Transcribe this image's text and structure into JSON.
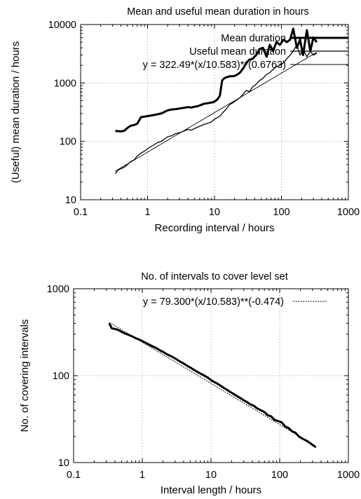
{
  "chart_data": [
    {
      "type": "line",
      "title": "Mean and useful mean duration in hours",
      "xlabel": "Recording interval / hours",
      "ylabel": "(Useful) mean duration / hours",
      "x_scale": "log",
      "y_scale": "log",
      "xlim": [
        0.1,
        1000
      ],
      "ylim": [
        10,
        10000
      ],
      "x_ticks": [
        "0.1",
        "1",
        "10",
        "100",
        "1000"
      ],
      "y_ticks": [
        "10",
        "100",
        "1000",
        "10000"
      ],
      "grid": true,
      "legend_position": "top-right",
      "series": [
        {
          "name": "Mean duration",
          "style": "thick",
          "x": [
            0.33,
            0.36,
            0.4,
            0.45,
            0.5,
            0.56,
            0.63,
            0.7,
            0.8,
            0.9,
            1.0,
            1.2,
            1.4,
            1.6,
            1.8,
            2.0,
            2.3,
            2.6,
            3.0,
            3.5,
            4.0,
            4.5,
            5.0,
            5.6,
            6.3,
            7.0,
            8.0,
            9.0,
            10.0,
            11.0,
            12.0,
            13.0,
            14.0,
            15.0,
            17.0,
            19.0,
            21.0,
            24.0,
            27.0,
            30.0,
            33.0,
            37.0,
            42.0,
            47.0,
            53.0,
            60.0,
            67.0,
            75.0,
            84.0,
            95.0,
            107.0,
            120.0,
            135.0,
            150.0,
            170.0,
            190.0,
            210.0,
            240.0,
            270.0,
            300.0,
            336.0
          ],
          "y": [
            150,
            150,
            148,
            152,
            170,
            185,
            190,
            200,
            260,
            265,
            270,
            280,
            290,
            300,
            320,
            340,
            350,
            355,
            365,
            375,
            385,
            380,
            390,
            400,
            420,
            440,
            450,
            460,
            480,
            520,
            600,
            1100,
            1200,
            1250,
            1300,
            1300,
            1350,
            1500,
            1800,
            2200,
            2500,
            2600,
            3000,
            3800,
            4000,
            2800,
            4500,
            3500,
            5000,
            4500,
            5500,
            5000,
            5500,
            8500,
            4000,
            5500,
            3000,
            8000,
            3500,
            6000,
            5000
          ]
        },
        {
          "name": "Useful mean duration",
          "style": "thin",
          "x": [
            0.33,
            0.36,
            0.4,
            0.45,
            0.5,
            0.56,
            0.63,
            0.7,
            0.8,
            0.9,
            1.0,
            1.2,
            1.4,
            1.6,
            1.8,
            2.0,
            2.3,
            2.6,
            3.0,
            3.5,
            4.0,
            4.5,
            5.0,
            5.6,
            6.3,
            7.0,
            8.0,
            9.0,
            10.0,
            11.0,
            12.0,
            13.0,
            14.0,
            15.0,
            17.0,
            19.0,
            21.0,
            24.0,
            27.0,
            30.0,
            33.0,
            37.0,
            42.0,
            47.0,
            53.0,
            60.0,
            67.0,
            75.0,
            84.0,
            95.0,
            107.0,
            120.0,
            135.0,
            150.0,
            170.0,
            190.0,
            210.0,
            240.0,
            270.0,
            300.0,
            336.0
          ],
          "y": [
            28,
            32,
            34,
            36,
            40,
            45,
            48,
            56,
            63,
            68,
            75,
            85,
            95,
            100,
            110,
            120,
            125,
            135,
            140,
            150,
            160,
            155,
            165,
            175,
            185,
            195,
            205,
            215,
            240,
            255,
            270,
            300,
            330,
            360,
            430,
            460,
            500,
            560,
            650,
            750,
            700,
            850,
            950,
            1100,
            1200,
            1400,
            1500,
            1700,
            1900,
            2000,
            2200,
            2600,
            3000,
            3500,
            4500,
            3000,
            3800,
            2800,
            3500,
            3000,
            3200
          ]
        },
        {
          "name": "y = 322.49*(x/10.583)**(0.6763)",
          "style": "fit",
          "fit": {
            "a": 322.49,
            "x0": 10.583,
            "b": 0.6763,
            "x_from": 0.33,
            "x_to": 336
          }
        }
      ]
    },
    {
      "type": "line",
      "title": "No. of intervals to cover level set",
      "xlabel": "Interval length / hours",
      "ylabel": "No. of covering intervals",
      "x_scale": "log",
      "y_scale": "log",
      "xlim": [
        0.1,
        1000
      ],
      "ylim": [
        10,
        1000
      ],
      "x_ticks": [
        "0.1",
        "1",
        "10",
        "100",
        "1000"
      ],
      "y_ticks": [
        "10",
        "100",
        "1000"
      ],
      "grid": true,
      "legend_position": "top-right",
      "series": [
        {
          "name": "",
          "style": "thick",
          "x": [
            0.33,
            0.36,
            0.4,
            0.45,
            0.5,
            0.56,
            0.63,
            0.7,
            0.8,
            0.9,
            1.0,
            1.2,
            1.4,
            1.6,
            1.8,
            2.0,
            2.3,
            2.6,
            3.0,
            3.5,
            4.0,
            4.5,
            5.0,
            5.6,
            6.3,
            7.0,
            8.0,
            9.0,
            10.0,
            11.0,
            12.0,
            13.0,
            14.0,
            15.0,
            17.0,
            19.0,
            21.0,
            24.0,
            27.0,
            30.0,
            33.0,
            37.0,
            42.0,
            47.0,
            53.0,
            60.0,
            67.0,
            75.0,
            84.0,
            95.0,
            107.0,
            120.0,
            135.0,
            150.0,
            170.0,
            190.0,
            210.0,
            240.0,
            270.0,
            300.0,
            336.0
          ],
          "y": [
            400,
            350,
            345,
            335,
            320,
            305,
            295,
            285,
            270,
            260,
            250,
            232,
            218,
            208,
            196,
            188,
            176,
            168,
            158,
            146,
            138,
            130,
            124,
            117,
            111,
            106,
            100,
            95,
            89,
            85,
            82,
            79,
            76,
            73,
            69,
            65,
            62,
            58,
            55,
            52,
            50,
            47,
            45,
            42,
            40,
            38,
            35,
            34,
            31,
            30,
            29,
            26,
            25,
            23,
            22,
            20,
            19,
            18,
            17,
            16,
            15
          ]
        },
        {
          "name": "y = 79.300*(x/10.583)**(-0.474)",
          "style": "fit-dotted",
          "fit": {
            "a": 79.3,
            "x0": 10.583,
            "b": -0.474,
            "x_from": 0.33,
            "x_to": 336
          }
        }
      ]
    }
  ]
}
